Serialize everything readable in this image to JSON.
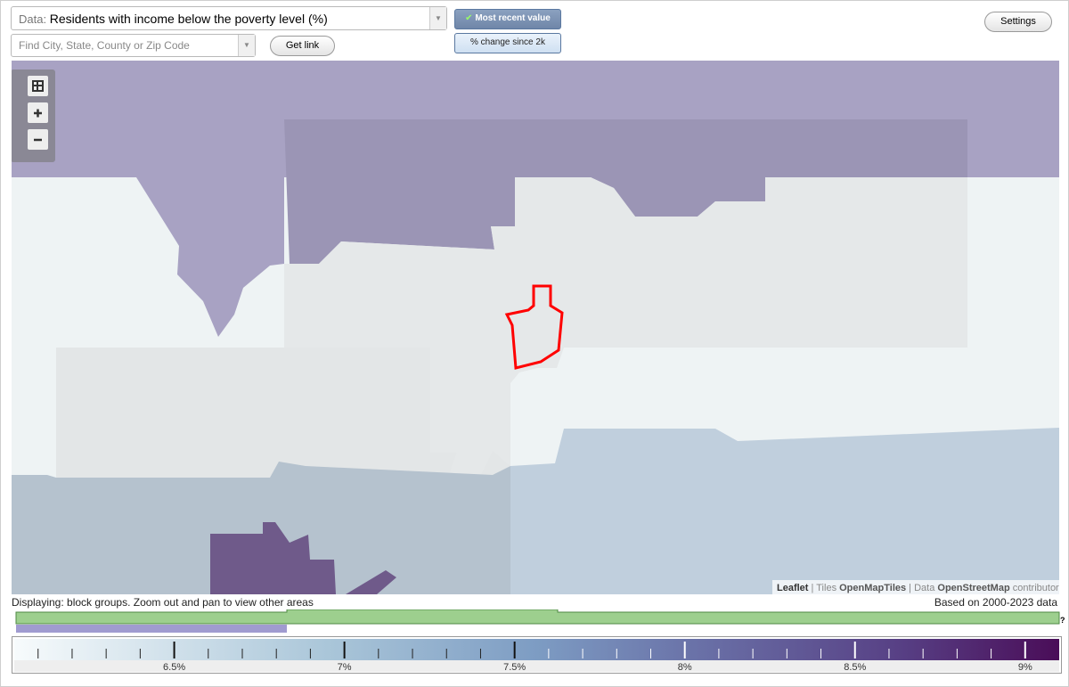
{
  "controls": {
    "data_prefix": "Data:",
    "data_select": "Residents with income below the poverty level (%)",
    "search_placeholder": "Find City, State, County or Zip Code",
    "get_link": "Get link",
    "most_recent": "Most recent value",
    "change": "% change since 2k",
    "settings": "Settings"
  },
  "attribution": {
    "leaflet": "Leaflet",
    "tiles_sep": "| Tiles",
    "tiles": "OpenMapTiles",
    "data_sep": "| Data",
    "osm": "OpenStreetMap",
    "contributors": "contributors"
  },
  "status": {
    "displaying": "Displaying: block groups. Zoom out and pan to view other areas",
    "based_on": "Based on 2000-2023 data",
    "help": "?"
  },
  "legend": {
    "range": [
      6.03,
      9.1
    ],
    "ticks": [
      {
        "value": 6.5,
        "label": "6.5%"
      },
      {
        "value": 7,
        "label": "7%"
      },
      {
        "value": 7.5,
        "label": "7.5%"
      },
      {
        "value": 8,
        "label": "8%"
      },
      {
        "value": 8.5,
        "label": "8.5%"
      },
      {
        "value": 9,
        "label": "9%"
      }
    ],
    "minor_ticks": [
      6.1,
      6.2,
      6.3,
      6.4,
      6.6,
      6.7,
      6.8,
      6.9,
      7.1,
      7.2,
      7.3,
      7.4,
      7.6,
      7.7,
      7.8,
      7.9,
      8.1,
      8.2,
      8.3,
      8.4,
      8.6,
      8.7,
      8.8,
      8.9
    ]
  }
}
